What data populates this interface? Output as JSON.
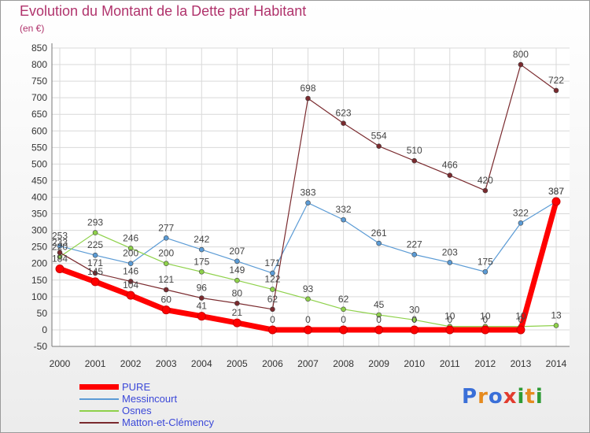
{
  "title": "Evolution du Montant de la Dette par Habitant",
  "unit": "(en €)",
  "logo": {
    "letters": [
      "P",
      "r",
      "o",
      "x",
      "i",
      "t",
      "i"
    ],
    "colors": [
      "#3a6fd8",
      "#e58a1f",
      "#3a6fd8",
      "#e23b2e",
      "#2e9b35",
      "#e58a1f",
      "#2e9b35"
    ]
  },
  "chart_data": {
    "type": "line",
    "title": "Evolution du Montant de la Dette par Habitant",
    "ylabel": "(en €)",
    "x": [
      "2000",
      "2001",
      "2002",
      "2003",
      "2004",
      "2005",
      "2006",
      "2007",
      "2008",
      "2009",
      "2010",
      "2011",
      "2012",
      "2013",
      "2014"
    ],
    "ylim": [
      -50,
      850
    ],
    "yticks": [
      -50,
      0,
      50,
      100,
      150,
      200,
      250,
      300,
      350,
      400,
      450,
      500,
      550,
      600,
      650,
      700,
      750,
      800,
      850
    ],
    "grid": true,
    "legend_position": "bottom-left",
    "series": [
      {
        "name": "PURE",
        "color": "#ff0000",
        "width": 7,
        "values": [
          184,
          145,
          104,
          60,
          41,
          21,
          0,
          0,
          0,
          0,
          0,
          0,
          0,
          0,
          387
        ]
      },
      {
        "name": "Messincourt",
        "color": "#5b9bd5",
        "width": 1.2,
        "values": [
          253,
          225,
          200,
          277,
          242,
          207,
          171,
          383,
          332,
          261,
          227,
          203,
          175,
          322,
          387
        ]
      },
      {
        "name": "Osnes",
        "color": "#8ed14a",
        "width": 1.2,
        "values": [
          220,
          293,
          246,
          200,
          175,
          149,
          122,
          93,
          62,
          45,
          30,
          10,
          10,
          10,
          13
        ]
      },
      {
        "name": "Matton-et-Clémency",
        "color": "#7a2a2e",
        "width": 1.2,
        "values": [
          233,
          171,
          146,
          121,
          96,
          80,
          62,
          698,
          623,
          554,
          510,
          466,
          420,
          800,
          722
        ]
      }
    ]
  }
}
